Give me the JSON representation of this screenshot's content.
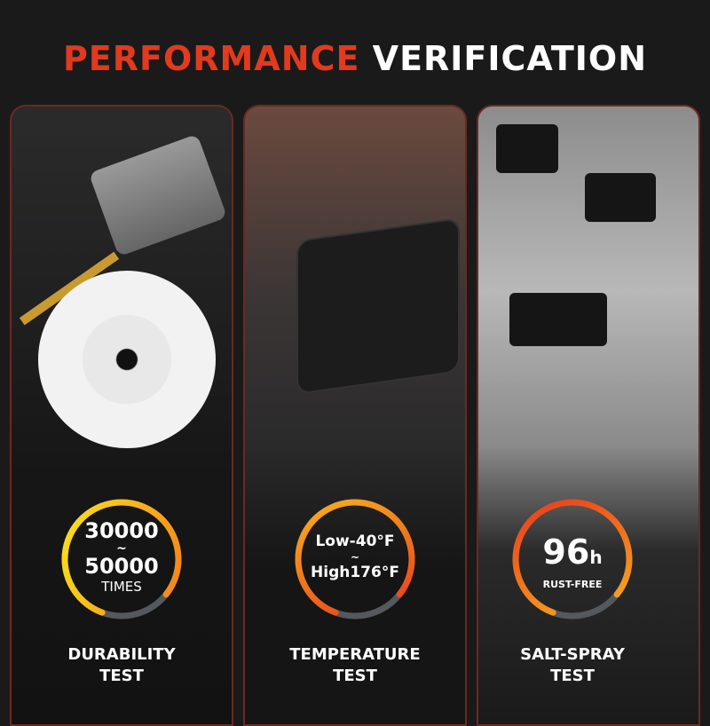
{
  "title": {
    "part1": "PERFORMANCE",
    "part2": "VERIFICATION"
  },
  "colors": {
    "accent_red": "#e23a1e",
    "ring_orange": "#f58a1c",
    "ring_yellow": "#f7c51e",
    "ring_gray": "#55585c"
  },
  "tests": [
    {
      "line1": "30000",
      "tilde": "~",
      "line2": "50000",
      "unit": "TIMES",
      "label1": "DURABILITY",
      "label2": "TEST",
      "image": "motor-gear"
    },
    {
      "line1": "Low-40°F",
      "tilde": "~",
      "line2": "High176°F",
      "label1": "TEMPERATURE",
      "label2": "TEST",
      "image": "door-latch-actuator"
    },
    {
      "line1": "96",
      "unit_suffix": "h",
      "sub": "RUST-FREE",
      "label1": "SALT-SPRAY",
      "label2": "TEST",
      "image": "latches-in-salt-spray"
    }
  ]
}
